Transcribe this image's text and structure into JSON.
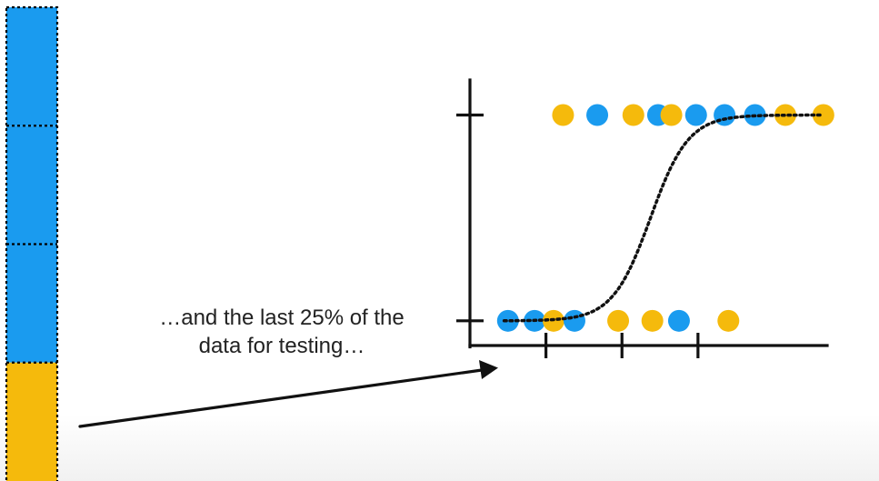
{
  "caption": {
    "line1": "…and the last 25% of the",
    "line2": "data for testing…"
  },
  "colors": {
    "train": "#1a9bef",
    "test": "#f5ba0c",
    "ink": "#111111"
  },
  "data_column": {
    "segments": [
      {
        "role": "train",
        "fraction": 0.25
      },
      {
        "role": "train",
        "fraction": 0.25
      },
      {
        "role": "train",
        "fraction": 0.25
      },
      {
        "role": "test",
        "fraction": 0.25
      }
    ]
  },
  "chart_data": {
    "type": "scatter",
    "title": "",
    "xlabel": "",
    "ylabel": "",
    "xlim": [
      0,
      9.4
    ],
    "ylim": [
      -0.12,
      1.17
    ],
    "x_ticks": [
      2,
      4,
      6
    ],
    "y_ticks": [
      0,
      1
    ],
    "points": [
      {
        "x": 1.0,
        "y": 0,
        "color": "train"
      },
      {
        "x": 1.7,
        "y": 0,
        "color": "train"
      },
      {
        "x": 2.2,
        "y": 0,
        "color": "test"
      },
      {
        "x": 2.75,
        "y": 0,
        "color": "train"
      },
      {
        "x": 3.9,
        "y": 0,
        "color": "test"
      },
      {
        "x": 4.8,
        "y": 0,
        "color": "test"
      },
      {
        "x": 5.5,
        "y": 0,
        "color": "train"
      },
      {
        "x": 6.8,
        "y": 0,
        "color": "test"
      },
      {
        "x": 2.45,
        "y": 1,
        "color": "test"
      },
      {
        "x": 3.35,
        "y": 1,
        "color": "train"
      },
      {
        "x": 4.3,
        "y": 1,
        "color": "test"
      },
      {
        "x": 4.95,
        "y": 1,
        "color": "train"
      },
      {
        "x": 5.3,
        "y": 1,
        "color": "test"
      },
      {
        "x": 5.95,
        "y": 1,
        "color": "train"
      },
      {
        "x": 6.7,
        "y": 1,
        "color": "train"
      },
      {
        "x": 7.5,
        "y": 1,
        "color": "train"
      },
      {
        "x": 8.3,
        "y": 1,
        "color": "test"
      },
      {
        "x": 9.3,
        "y": 1,
        "color": "test"
      }
    ],
    "curve": {
      "type": "logistic",
      "midpoint": 4.75,
      "slope": 2.0,
      "x_range": [
        0.9,
        9.3
      ],
      "style": "dotted"
    }
  }
}
